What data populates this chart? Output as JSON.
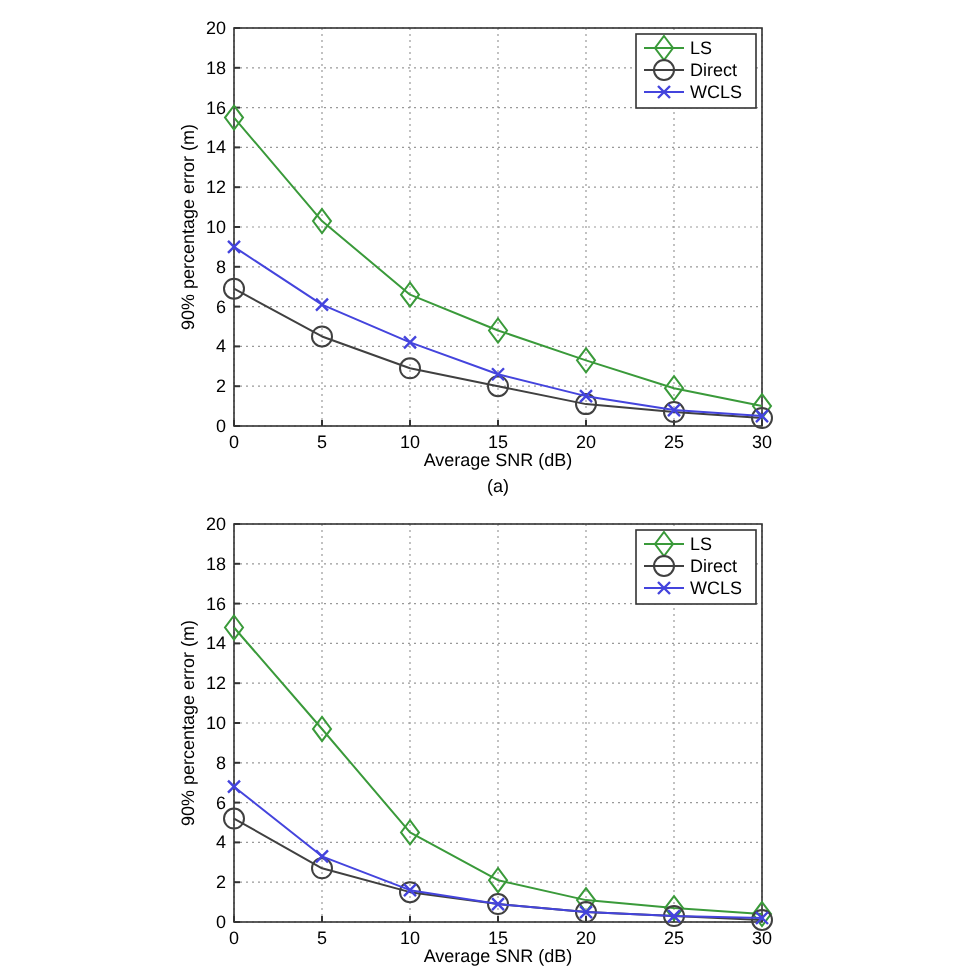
{
  "chart_data": [
    {
      "type": "line",
      "xlabel": "Average SNR (dB)",
      "ylabel": "90% percentage error (m)",
      "annotations": [
        "(a)"
      ],
      "x": [
        0,
        5,
        10,
        15,
        20,
        25,
        30
      ],
      "xlim": [
        0,
        30
      ],
      "xticks": [
        0,
        5,
        10,
        15,
        20,
        25,
        30
      ],
      "ylim": [
        0,
        20
      ],
      "yticks": [
        0,
        2,
        4,
        6,
        8,
        10,
        12,
        14,
        16,
        18,
        20
      ],
      "grid": true,
      "legend": "top right",
      "line_style": "solid",
      "series": [
        {
          "name": "LS",
          "color": "#3a9a3a",
          "marker": "diamond",
          "values": [
            15.5,
            10.3,
            6.6,
            4.8,
            3.3,
            1.9,
            1.0
          ]
        },
        {
          "name": "Direct",
          "color": "#404040",
          "marker": "circle",
          "values": [
            6.9,
            4.5,
            2.9,
            2.0,
            1.1,
            0.7,
            0.4
          ]
        },
        {
          "name": "WCLS",
          "color": "#4444dd",
          "marker": "cross",
          "values": [
            9.0,
            6.1,
            4.2,
            2.6,
            1.5,
            0.8,
            0.5
          ]
        }
      ]
    },
    {
      "type": "line",
      "xlabel": "Average SNR (dB)",
      "ylabel": "90% percentage error (m)",
      "x": [
        0,
        5,
        10,
        15,
        20,
        25,
        30
      ],
      "xlim": [
        0,
        30
      ],
      "xticks": [
        0,
        5,
        10,
        15,
        20,
        25,
        30
      ],
      "ylim": [
        0,
        20
      ],
      "yticks": [
        0,
        2,
        4,
        6,
        8,
        10,
        12,
        14,
        16,
        18,
        20
      ],
      "grid": true,
      "legend": "top right",
      "line_style": "solid",
      "series": [
        {
          "name": "LS",
          "color": "#3a9a3a",
          "marker": "diamond",
          "values": [
            14.8,
            9.7,
            4.5,
            2.1,
            1.1,
            0.7,
            0.4
          ]
        },
        {
          "name": "Direct",
          "color": "#404040",
          "marker": "circle",
          "values": [
            5.2,
            2.7,
            1.5,
            0.9,
            0.5,
            0.3,
            0.1
          ]
        },
        {
          "name": "WCLS",
          "color": "#4444dd",
          "marker": "cross",
          "values": [
            6.8,
            3.3,
            1.6,
            0.9,
            0.5,
            0.3,
            0.2
          ]
        }
      ]
    }
  ]
}
